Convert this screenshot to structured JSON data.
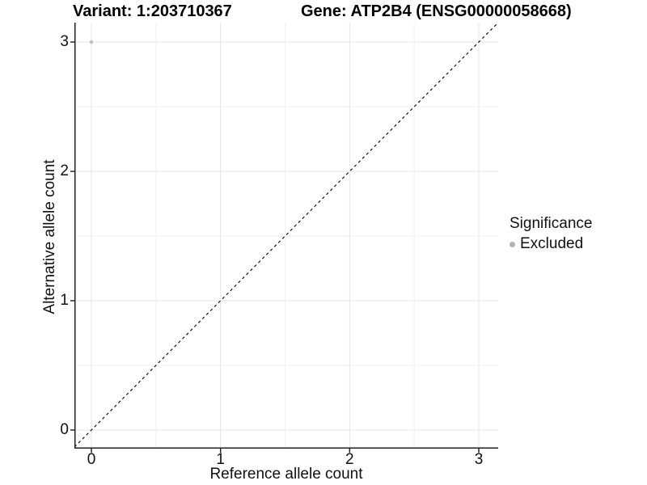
{
  "chart_data": {
    "type": "scatter",
    "title_parts": [
      "Variant: 1:203710367",
      "Gene: ATP2B4 (ENSG00000058668)"
    ],
    "xlabel": "Reference allele count",
    "ylabel": "Alternative allele count",
    "xlim": [
      -0.13,
      3.15
    ],
    "ylim": [
      -0.14,
      3.15
    ],
    "x_ticks": [
      0,
      1,
      2,
      3
    ],
    "y_ticks": [
      0,
      1,
      2,
      3
    ],
    "grid": "major and minor gridlines, light grey on white panel",
    "series": [
      {
        "name": "Excluded",
        "color": "#bdbdbd",
        "points": [
          {
            "x": 0,
            "y": 3
          }
        ]
      }
    ],
    "reference_line": {
      "kind": "identity y=x",
      "style": "dashed",
      "color": "#000000"
    },
    "legend": {
      "title": "Significance",
      "position": "right",
      "entries": [
        {
          "label": "Excluded",
          "color": "#b3b3b3",
          "marker": "circle"
        }
      ]
    },
    "colors": {
      "axis_line": "#222222",
      "major_grid": "#e5e5e5",
      "minor_grid": "#f2f2f2",
      "tick_mark": "#222222"
    }
  }
}
